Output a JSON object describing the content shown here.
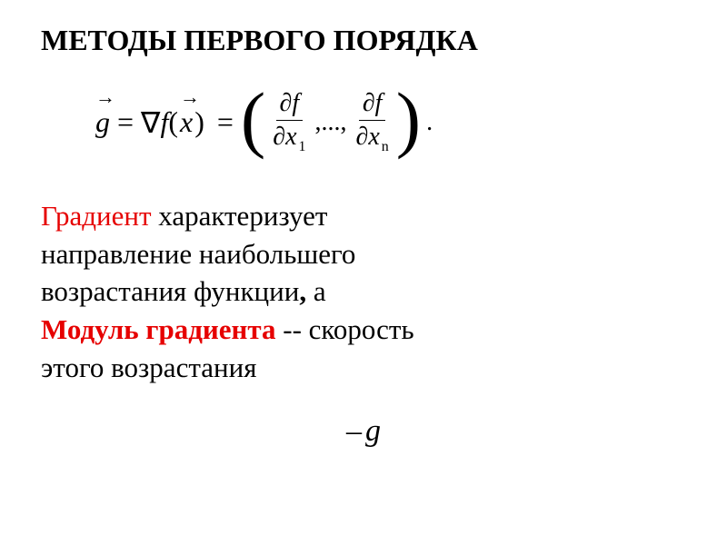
{
  "title": "МЕТОДЫ ПЕРВОГО ПОРЯДКА",
  "formula": {
    "lhs_var": "g",
    "nabla": "∇",
    "func": "f",
    "arg": "x",
    "frac1_num_partial": "∂",
    "frac1_num_var": "f",
    "frac1_den_partial": "∂",
    "frac1_den_var": "x",
    "frac1_den_sub": "1",
    "dots": ",...,",
    "frac2_num_partial": "∂",
    "frac2_num_var": "f",
    "frac2_den_partial": "∂",
    "frac2_den_var": "x",
    "frac2_den_sub": "n",
    "period": "."
  },
  "body": {
    "gradient_word": "Градиент",
    "line1_rest": " характеризует",
    "line2": "направление наибольшего",
    "line3_a": "возрастания функции",
    "line3_comma": ",",
    "line3_b": " а",
    "modulus_words": "Модуль градиента",
    "line4_rest": " -- скорость",
    "line5": "этого возрастания"
  },
  "neg_g": {
    "minus": "–",
    "var": "g"
  },
  "style": {
    "title_fontsize": 32,
    "body_fontsize": 31,
    "formula_fontsize": 32,
    "highlight_color": "#e60000",
    "text_color": "#000000",
    "background_color": "#ffffff",
    "font_family": "Times New Roman"
  }
}
